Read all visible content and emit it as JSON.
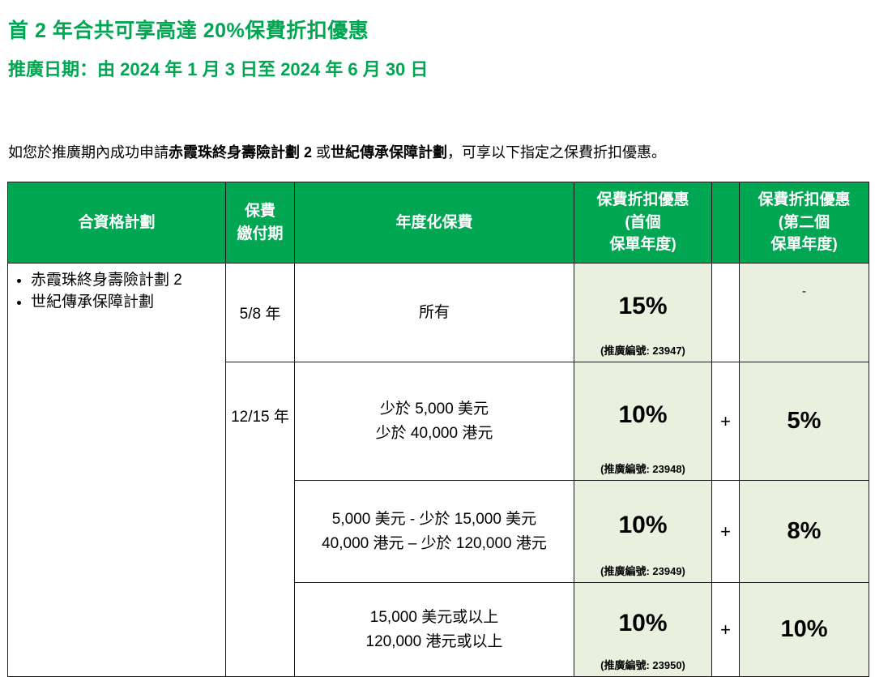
{
  "colors": {
    "accent": "#00A651",
    "header_bg": "#00A651",
    "cell_bg": "#E9F0DE",
    "border": "#1A1A1A"
  },
  "page": {
    "title": "首 2 年合共可享高達 20%保費折扣優惠",
    "promo_period": "推廣日期：由 2024 年 1 月 3 日至 2024 年 6 月 30 日",
    "intro": {
      "pre": "如您於推廣期內成功申請",
      "plan1": "赤霞珠終身壽險計劃 2",
      "mid": " 或",
      "plan2": "世紀傳承保障計劃",
      "post": "，可享以下指定之保費折扣優惠。"
    }
  },
  "table": {
    "header": {
      "eligible_plans": "合資格計劃",
      "payment_l1": "保費",
      "payment_l2": "繳付期",
      "annualized_premium": "年度化保費",
      "first_l1": "保費折扣優惠",
      "first_l2": "(首個",
      "first_l3": "保單年度)",
      "plus": "",
      "second_l1": "保費折扣優惠",
      "second_l2": "(第二個",
      "second_l3": "保單年度)"
    },
    "eligible_plans": [
      "赤霞珠終身壽險計劃 2",
      "世紀傳承保障計劃"
    ],
    "rows": [
      {
        "payment_term": "5/8 年",
        "premium_l1": "所有",
        "first_discount": "15%",
        "promo_code": "(推廣編號: 23947)",
        "plus": "",
        "second_discount": "-"
      },
      {
        "payment_term": "12/15 年",
        "premium_l1": "少於 5,000 美元",
        "premium_l2": "少於 40,000 港元",
        "first_discount": "10%",
        "promo_code": "(推廣編號: 23948)",
        "plus": "+",
        "second_discount": "5%"
      },
      {
        "premium_l1": "5,000 美元 - 少於 15,000 美元",
        "premium_l2": "40,000 港元 – 少於 120,000 港元",
        "first_discount": "10%",
        "promo_code": "(推廣編號: 23949)",
        "plus": "+",
        "second_discount": "8%"
      },
      {
        "premium_l1": "15,000 美元或以上",
        "premium_l2": "120,000 港元或以上",
        "first_discount": "10%",
        "promo_code": "(推廣編號: 23950)",
        "plus": "+",
        "second_discount": "10%"
      }
    ]
  }
}
